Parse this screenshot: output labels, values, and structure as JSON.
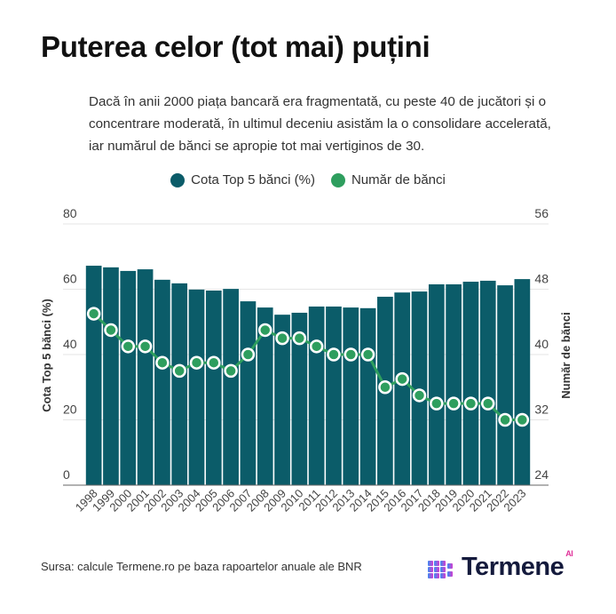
{
  "header": {
    "title": "Puterea celor (tot mai) puțini",
    "subtitle": "Dacă în anii 2000 piața bancară era fragmentată, cu peste 40 de jucători și o concentrare moderată, în ultimul deceniu asistăm la o consolidare accelerată, iar numărul de bănci se apropie tot mai vertiginos de 30."
  },
  "footer": {
    "source": "Sursa: calcule Termene.ro pe baza rapoartelor anuale ale BNR",
    "logo_text": "Termene",
    "logo_badge": "AI"
  },
  "colors": {
    "bar": "#0b5c69",
    "line": "#2e9e5e",
    "grid": "#e6e6e6"
  },
  "chart_data": {
    "type": "bar+line",
    "categories": [
      "1998",
      "1999",
      "2000",
      "2001",
      "2002",
      "2003",
      "2004",
      "2005",
      "2006",
      "2007",
      "2008",
      "2009",
      "2010",
      "2011",
      "2012",
      "2013",
      "2014",
      "2015",
      "2016",
      "2017",
      "2018",
      "2019",
      "2020",
      "2021",
      "2022",
      "2023"
    ],
    "series": [
      {
        "name": "Cota Top 5 bănci (%)",
        "type": "bar",
        "axis": "left",
        "values": [
          67.2,
          66.7,
          65.6,
          66.1,
          62.9,
          61.8,
          59.9,
          59.6,
          60.1,
          56.3,
          54.4,
          52.2,
          52.8,
          54.7,
          54.7,
          54.4,
          54.2,
          57.7,
          59.0,
          59.3,
          61.5,
          61.5,
          62.3,
          62.6,
          61.2,
          63.1
        ]
      },
      {
        "name": "Număr de bănci",
        "type": "line",
        "axis": "right",
        "values": [
          45,
          43,
          41,
          41,
          39,
          38,
          39,
          39,
          38,
          40,
          43,
          42,
          42,
          41,
          40,
          40,
          40,
          36,
          37,
          35,
          34,
          34,
          34,
          34,
          32,
          32
        ]
      }
    ],
    "ylabel_left": "Cota Top 5 bănci (%)",
    "ylabel_right": "Număr de bănci",
    "ylim_left": [
      0,
      80
    ],
    "yticks_left": [
      "0",
      "20",
      "40",
      "60",
      "80"
    ],
    "ylim_right": [
      24,
      56
    ],
    "yticks_right": [
      "24",
      "32",
      "40",
      "48",
      "56"
    ],
    "grid": true,
    "legend_position": "top-center"
  }
}
